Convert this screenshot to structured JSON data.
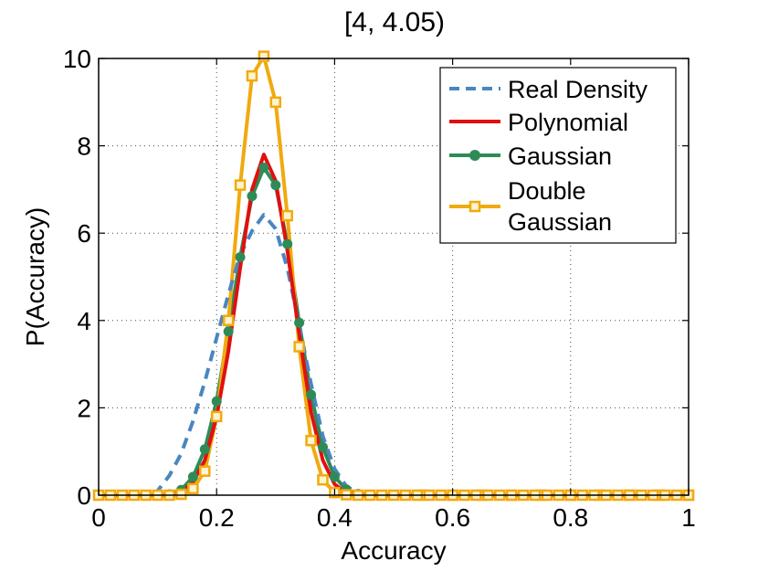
{
  "chart_data": {
    "type": "line",
    "title": "[4, 4.05)",
    "xlabel": "Accuracy",
    "ylabel": "P(Accuracy)",
    "xlim": [
      0,
      1
    ],
    "ylim": [
      0,
      10
    ],
    "xticks": [
      0,
      0.2,
      0.4,
      0.6,
      0.8,
      1
    ],
    "xtick_labels": [
      "0",
      "0.2",
      "0.4",
      "0.6",
      "0.8",
      "1"
    ],
    "yticks": [
      0,
      2,
      4,
      6,
      8,
      10
    ],
    "ytick_labels": [
      "0",
      "2",
      "4",
      "6",
      "8",
      "10"
    ],
    "grid": true,
    "legend_position": "top-right",
    "x": [
      0.0,
      0.02,
      0.04,
      0.06,
      0.08,
      0.1,
      0.12,
      0.14,
      0.16,
      0.18,
      0.2,
      0.22,
      0.24,
      0.26,
      0.28,
      0.3,
      0.32,
      0.34,
      0.36,
      0.38,
      0.4,
      0.42,
      0.44,
      0.46,
      0.48,
      0.5,
      0.55,
      0.6,
      0.65,
      0.7,
      0.75,
      0.8,
      0.85,
      0.9,
      0.95,
      1.0
    ],
    "series": [
      {
        "name": "Real Density",
        "color": "#4a86c0",
        "style": "dashed",
        "marker": "none",
        "values": [
          0,
          0,
          0,
          0,
          0,
          0.1,
          0.45,
          0.95,
          1.7,
          2.6,
          3.6,
          4.6,
          5.5,
          6.05,
          6.42,
          6.1,
          5.2,
          3.9,
          2.55,
          1.35,
          0.6,
          0.2,
          0.05,
          0.0,
          0,
          0,
          0,
          0,
          0,
          0,
          0,
          0,
          0,
          0,
          0,
          0
        ]
      },
      {
        "name": "Polynomial",
        "color": "#e01010",
        "style": "solid",
        "marker": "none",
        "values": [
          0,
          0,
          0,
          0,
          0,
          0,
          0,
          0.05,
          0.3,
          0.8,
          1.8,
          3.3,
          5.2,
          7.0,
          7.8,
          7.2,
          5.6,
          3.7,
          1.9,
          0.8,
          0.25,
          0.05,
          0,
          0,
          0,
          0,
          0,
          0,
          0,
          0,
          0,
          0,
          0,
          0,
          0,
          0
        ]
      },
      {
        "name": "Gaussian",
        "color": "#2e8b57",
        "style": "solid",
        "marker": "circle",
        "values": [
          0,
          0,
          0,
          0,
          0,
          0,
          0.02,
          0.12,
          0.42,
          1.05,
          2.15,
          3.75,
          5.45,
          6.85,
          7.5,
          7.1,
          5.75,
          3.95,
          2.3,
          1.1,
          0.42,
          0.13,
          0.03,
          0,
          0,
          0,
          0,
          0,
          0,
          0,
          0,
          0,
          0,
          0,
          0,
          0
        ]
      },
      {
        "name": "Double Gaussian",
        "color": "#f0aa10",
        "style": "solid",
        "marker": "square",
        "values": [
          0,
          0,
          0,
          0,
          0,
          0,
          0,
          0.02,
          0.15,
          0.55,
          1.8,
          4.0,
          7.1,
          9.6,
          10.05,
          9.0,
          6.4,
          3.4,
          1.25,
          0.35,
          0.06,
          0.01,
          0,
          0,
          0,
          0,
          0,
          0,
          0,
          0,
          0,
          0,
          0,
          0,
          0,
          0
        ]
      }
    ],
    "legend": {
      "real": "Real Density",
      "poly": "Polynomial",
      "gauss": "Gaussian",
      "double_line1": "Double",
      "double_line2": "Gaussian"
    }
  }
}
